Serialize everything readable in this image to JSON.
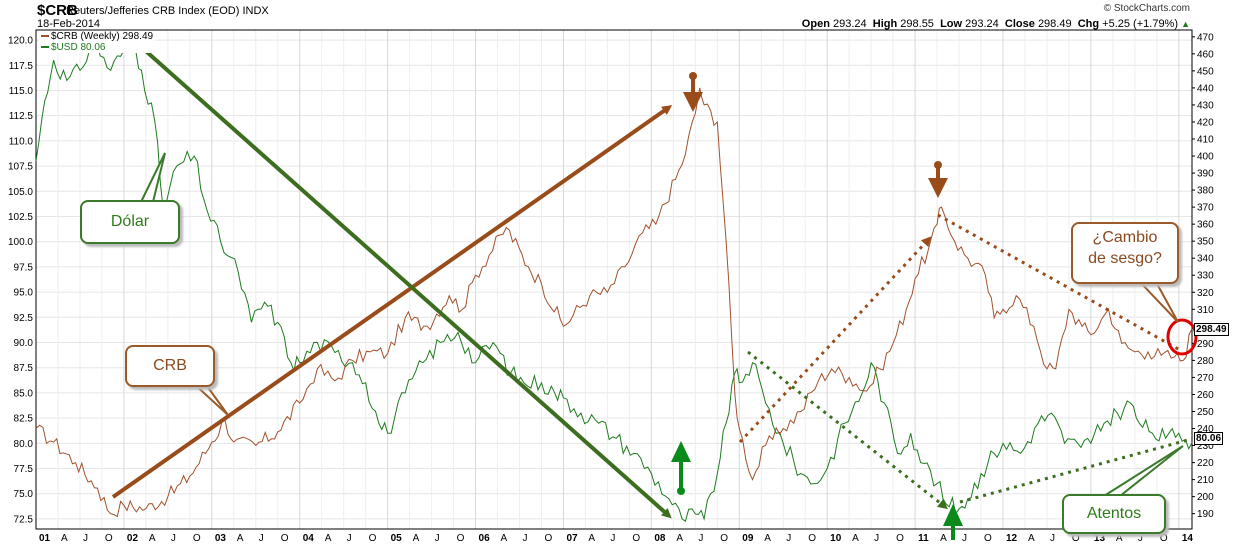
{
  "header": {
    "symbol": "$CRB",
    "subtitle": "Reuters/Jefferies CRB Index (EOD)  INDX",
    "date": "18-Feb-2014",
    "credit": "© StockCharts.com",
    "ohlc": {
      "open_label": "Open",
      "open": "293.24",
      "high_label": "High",
      "high": "298.55",
      "low_label": "Low",
      "low": "293.24",
      "close_label": "Close",
      "close": "298.49",
      "chg_label": "Chg",
      "chg": "+5.25 (+1.79%)",
      "chg_arrow": "▲"
    }
  },
  "legend": {
    "crb": "$CRB (Weekly) 298.49",
    "usd": "$USD 80.06"
  },
  "last_values": {
    "crb": "298.49",
    "usd": "80.06"
  },
  "annotations": {
    "dolar": "Dólar",
    "crb": "CRB",
    "cambio_line1": "¿Cambio",
    "cambio_line2": "de sesgo?",
    "atentos": "Atentos"
  },
  "colors": {
    "crb": "#a0522d",
    "usd": "#1e7b1e",
    "brown_annot": "#994c1a",
    "green_annot": "#3d6e1f",
    "highlight": "#e00000"
  },
  "chart_data": {
    "type": "line",
    "x_tick_labels": [
      "01",
      "A",
      "J",
      "O",
      "02",
      "A",
      "J",
      "O",
      "03",
      "A",
      "J",
      "O",
      "04",
      "A",
      "J",
      "O",
      "05",
      "A",
      "J",
      "O",
      "06",
      "A",
      "J",
      "O",
      "07",
      "A",
      "J",
      "O",
      "08",
      "A",
      "J",
      "O",
      "09",
      "A",
      "J",
      "O",
      "10",
      "A",
      "J",
      "O",
      "11",
      "A",
      "J",
      "O",
      "12",
      "A",
      "J",
      "O",
      "13",
      "A",
      "J",
      "O",
      "14"
    ],
    "xlim": [
      2001.0,
      2014.15
    ],
    "left_axis": {
      "series": "$USD",
      "ylim": [
        71.5,
        121.0
      ],
      "ticks": [
        72.5,
        75.0,
        77.5,
        80.0,
        82.5,
        85.0,
        87.5,
        90.0,
        92.5,
        95.0,
        97.5,
        100.0,
        102.5,
        105.0,
        107.5,
        110.0,
        112.5,
        115.0,
        117.5,
        120.0
      ]
    },
    "right_axis": {
      "series": "$CRB",
      "ylim": [
        181,
        474
      ],
      "ticks": [
        190,
        200,
        210,
        220,
        230,
        240,
        250,
        260,
        270,
        280,
        290,
        300,
        310,
        320,
        330,
        340,
        350,
        360,
        370,
        380,
        390,
        400,
        410,
        420,
        430,
        440,
        450,
        460,
        470
      ]
    },
    "series": [
      {
        "name": "$CRB (Weekly)",
        "axis": "right",
        "points": [
          [
            2001.0,
            240
          ],
          [
            2001.2,
            232
          ],
          [
            2001.45,
            220
          ],
          [
            2001.7,
            205
          ],
          [
            2001.85,
            190
          ],
          [
            2002.0,
            195
          ],
          [
            2002.25,
            193
          ],
          [
            2002.5,
            200
          ],
          [
            2002.75,
            212
          ],
          [
            2003.0,
            232
          ],
          [
            2003.15,
            245
          ],
          [
            2003.25,
            232
          ],
          [
            2003.5,
            230
          ],
          [
            2003.75,
            238
          ],
          [
            2004.0,
            255
          ],
          [
            2004.2,
            275
          ],
          [
            2004.4,
            268
          ],
          [
            2004.6,
            280
          ],
          [
            2004.8,
            285
          ],
          [
            2005.0,
            284
          ],
          [
            2005.2,
            305
          ],
          [
            2005.45,
            300
          ],
          [
            2005.7,
            318
          ],
          [
            2005.85,
            310
          ],
          [
            2006.0,
            330
          ],
          [
            2006.35,
            358
          ],
          [
            2006.6,
            335
          ],
          [
            2006.75,
            325
          ],
          [
            2007.0,
            300
          ],
          [
            2007.3,
            318
          ],
          [
            2007.5,
            320
          ],
          [
            2007.7,
            335
          ],
          [
            2007.9,
            355
          ],
          [
            2008.05,
            360
          ],
          [
            2008.35,
            395
          ],
          [
            2008.5,
            425
          ],
          [
            2008.55,
            440
          ],
          [
            2008.6,
            430
          ],
          [
            2008.75,
            420
          ],
          [
            2008.85,
            350
          ],
          [
            2008.95,
            260
          ],
          [
            2009.0,
            240
          ],
          [
            2009.15,
            210
          ],
          [
            2009.3,
            230
          ],
          [
            2009.5,
            240
          ],
          [
            2009.7,
            250
          ],
          [
            2009.9,
            268
          ],
          [
            2010.05,
            275
          ],
          [
            2010.25,
            270
          ],
          [
            2010.45,
            262
          ],
          [
            2010.6,
            275
          ],
          [
            2010.75,
            290
          ],
          [
            2010.9,
            310
          ],
          [
            2011.0,
            328
          ],
          [
            2011.15,
            345
          ],
          [
            2011.25,
            360
          ],
          [
            2011.3,
            370
          ],
          [
            2011.45,
            350
          ],
          [
            2011.6,
            340
          ],
          [
            2011.8,
            330
          ],
          [
            2011.9,
            305
          ],
          [
            2012.0,
            310
          ],
          [
            2012.15,
            318
          ],
          [
            2012.35,
            300
          ],
          [
            2012.5,
            275
          ],
          [
            2012.6,
            275
          ],
          [
            2012.75,
            310
          ],
          [
            2012.9,
            300
          ],
          [
            2013.0,
            295
          ],
          [
            2013.2,
            310
          ],
          [
            2013.35,
            290
          ],
          [
            2013.5,
            285
          ],
          [
            2013.65,
            285
          ],
          [
            2013.8,
            283
          ],
          [
            2013.95,
            282
          ],
          [
            2014.05,
            280
          ],
          [
            2014.15,
            298.49
          ]
        ]
      },
      {
        "name": "$USD",
        "axis": "left",
        "points": [
          [
            2001.0,
            108
          ],
          [
            2001.1,
            114
          ],
          [
            2001.2,
            118
          ],
          [
            2001.35,
            116
          ],
          [
            2001.5,
            117
          ],
          [
            2001.65,
            120
          ],
          [
            2001.85,
            117
          ],
          [
            2002.0,
            119
          ],
          [
            2002.1,
            120
          ],
          [
            2002.2,
            117
          ],
          [
            2002.35,
            112
          ],
          [
            2002.45,
            103
          ],
          [
            2002.6,
            107.5
          ],
          [
            2002.8,
            108.5
          ],
          [
            2002.95,
            103
          ],
          [
            2003.1,
            100
          ],
          [
            2003.3,
            97
          ],
          [
            2003.45,
            92
          ],
          [
            2003.6,
            94
          ],
          [
            2003.75,
            92
          ],
          [
            2003.9,
            88
          ],
          [
            2004.0,
            88
          ],
          [
            2004.2,
            90
          ],
          [
            2004.4,
            89
          ],
          [
            2004.6,
            88
          ],
          [
            2004.75,
            86
          ],
          [
            2004.9,
            82
          ],
          [
            2005.0,
            81
          ],
          [
            2005.2,
            85
          ],
          [
            2005.4,
            88
          ],
          [
            2005.6,
            90
          ],
          [
            2005.8,
            91
          ],
          [
            2006.0,
            88
          ],
          [
            2006.2,
            90
          ],
          [
            2006.4,
            87
          ],
          [
            2006.55,
            86
          ],
          [
            2006.75,
            86
          ],
          [
            2006.9,
            85
          ],
          [
            2007.0,
            84.5
          ],
          [
            2007.2,
            83
          ],
          [
            2007.4,
            82
          ],
          [
            2007.6,
            80.5
          ],
          [
            2007.8,
            79
          ],
          [
            2008.0,
            77
          ],
          [
            2008.2,
            74.5
          ],
          [
            2008.35,
            72.5
          ],
          [
            2008.5,
            73
          ],
          [
            2008.6,
            72.5
          ],
          [
            2008.75,
            77
          ],
          [
            2008.85,
            82
          ],
          [
            2008.95,
            87
          ],
          [
            2009.0,
            86
          ],
          [
            2009.15,
            88
          ],
          [
            2009.3,
            84
          ],
          [
            2009.5,
            80
          ],
          [
            2009.7,
            77
          ],
          [
            2009.85,
            76
          ],
          [
            2010.0,
            77.5
          ],
          [
            2010.2,
            82
          ],
          [
            2010.4,
            85
          ],
          [
            2010.5,
            88
          ],
          [
            2010.65,
            84
          ],
          [
            2010.8,
            79
          ],
          [
            2010.95,
            81
          ],
          [
            2011.1,
            78
          ],
          [
            2011.25,
            76
          ],
          [
            2011.35,
            74
          ],
          [
            2011.5,
            73.5
          ],
          [
            2011.6,
            74.5
          ],
          [
            2011.75,
            77
          ],
          [
            2011.9,
            79
          ],
          [
            2012.0,
            80
          ],
          [
            2012.2,
            79
          ],
          [
            2012.4,
            82
          ],
          [
            2012.55,
            83
          ],
          [
            2012.7,
            80
          ],
          [
            2012.85,
            80
          ],
          [
            2013.0,
            80
          ],
          [
            2013.15,
            82
          ],
          [
            2013.3,
            83
          ],
          [
            2013.45,
            84
          ],
          [
            2013.55,
            82
          ],
          [
            2013.7,
            81
          ],
          [
            2013.85,
            80.5
          ],
          [
            2014.0,
            81
          ],
          [
            2014.15,
            80.06
          ]
        ]
      }
    ]
  }
}
